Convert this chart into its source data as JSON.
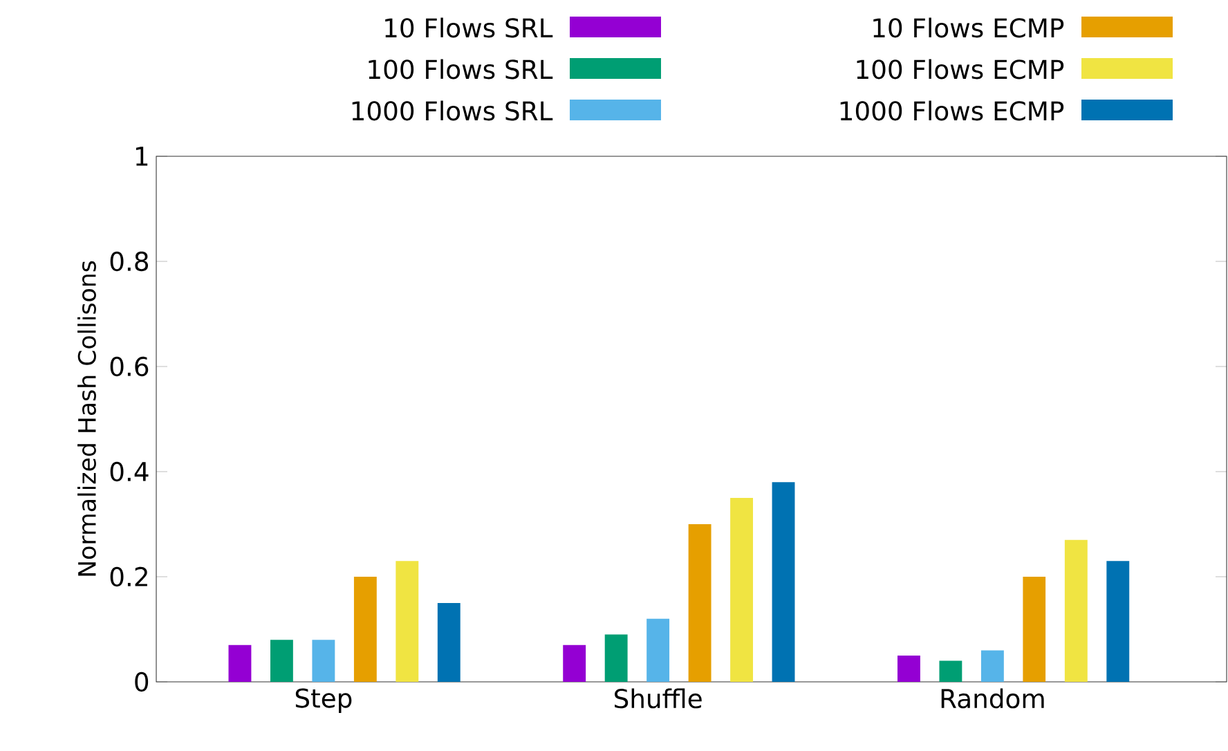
{
  "chart_data": {
    "type": "bar",
    "ylabel": "Normalized Hash Collisons",
    "categories": [
      "Step",
      "Shuffle",
      "Random"
    ],
    "series": [
      {
        "name": "10 Flows SRL",
        "color": "#9400d3",
        "values": [
          0.07,
          0.07,
          0.05
        ]
      },
      {
        "name": "100 Flows SRL",
        "color": "#009e73",
        "values": [
          0.08,
          0.09,
          0.04
        ]
      },
      {
        "name": "1000 Flows SRL",
        "color": "#56b4e9",
        "values": [
          0.08,
          0.12,
          0.06
        ]
      },
      {
        "name": "10 Flows ECMP",
        "color": "#e69f00",
        "values": [
          0.2,
          0.3,
          0.2
        ]
      },
      {
        "name": "100 Flows ECMP",
        "color": "#f0e442",
        "values": [
          0.23,
          0.35,
          0.27
        ]
      },
      {
        "name": "1000 Flows ECMP",
        "color": "#0072b2",
        "values": [
          0.15,
          0.38,
          0.23
        ]
      }
    ],
    "ylim": [
      0,
      1
    ],
    "yticks": [
      0,
      0.2,
      0.4,
      0.6,
      0.8,
      1
    ],
    "legend": "top",
    "grid": false
  }
}
